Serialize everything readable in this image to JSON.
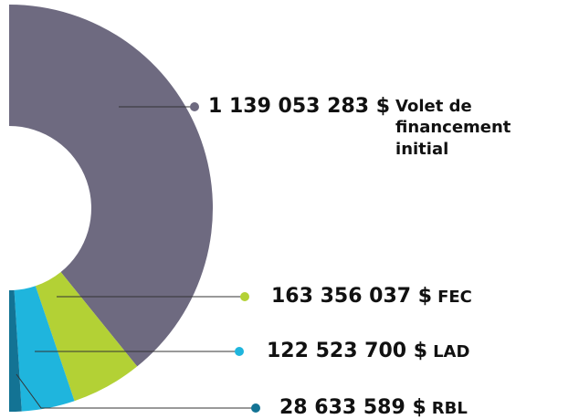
{
  "chart_data": {
    "type": "donut",
    "categories": [
      "Volet de financement initial",
      "FEC",
      "LAD",
      "RBL"
    ],
    "values": [
      1139053283,
      163356037,
      122523700,
      28633589
    ],
    "value_labels": [
      "1 139 053 283 $",
      "163 356 037 $",
      "122 523 700 $",
      "28 633 589 $"
    ],
    "colors": [
      "#6e6a80",
      "#b3d135",
      "#1fb5dd",
      "#137394"
    ]
  }
}
